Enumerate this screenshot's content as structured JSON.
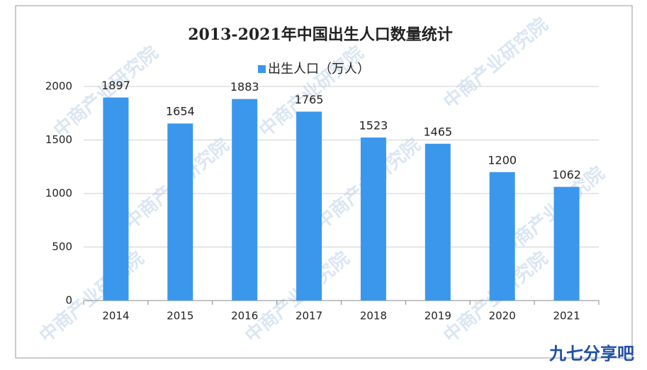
{
  "chart_data": {
    "type": "bar",
    "title": "2013-2021年中国出生人口数量统计",
    "categories": [
      "2014",
      "2015",
      "2016",
      "2017",
      "2018",
      "2019",
      "2020",
      "2021"
    ],
    "series": [
      {
        "name": "出生人口（万人）",
        "color": "#3a97ec",
        "values": [
          1897,
          1654,
          1883,
          1765,
          1523,
          1465,
          1200,
          1062
        ]
      }
    ],
    "ylim": [
      0,
      2000
    ],
    "yticks": [
      0,
      500,
      1000,
      1500,
      2000
    ],
    "grid": true,
    "legend": "top",
    "watermark": "中商产业研究院",
    "logo": "九七分享吧"
  }
}
